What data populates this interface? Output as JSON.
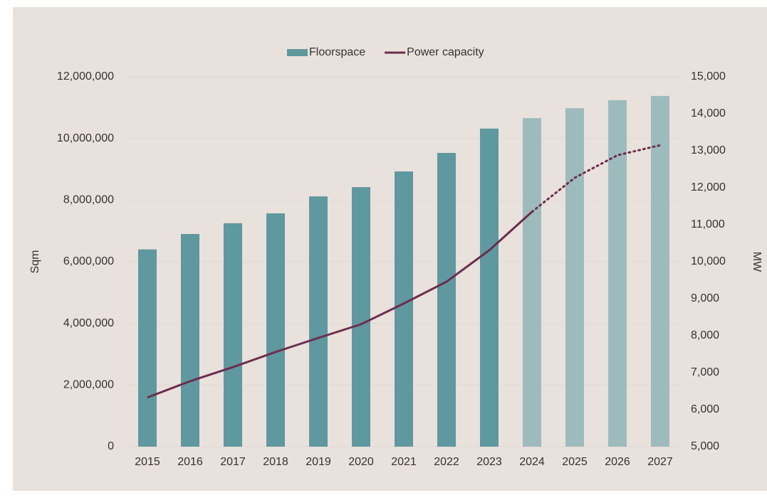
{
  "chart_data": {
    "type": "bar_line",
    "categories": [
      "2015",
      "2016",
      "2017",
      "2018",
      "2019",
      "2020",
      "2021",
      "2022",
      "2023",
      "2024",
      "2025",
      "2026",
      "2027"
    ],
    "series": [
      {
        "name": "Floorspace",
        "type": "bar",
        "color": "#5f989f",
        "forecast_color": "#9dbbbc",
        "values": [
          6400000,
          6900000,
          7250000,
          7570000,
          8120000,
          8420000,
          8930000,
          9530000,
          10320000,
          10660000,
          10980000,
          11240000,
          11380000
        ]
      },
      {
        "name": "Power capacity",
        "type": "line",
        "axis": "y2",
        "color": "#6b2d4f",
        "values": [
          6330,
          6770,
          7150,
          7560,
          7940,
          8310,
          8870,
          9460,
          10310,
          11350,
          12270,
          12880,
          13150
        ]
      }
    ],
    "forecast_from": "2024",
    "ylabel": "Sqm",
    "y2label": "MW",
    "ylim": [
      0,
      12000000
    ],
    "yticks": [
      0,
      {
        "value": 2000000,
        "label": "2,000,000"
      },
      {
        "value": 4000000,
        "label": "4,000,000"
      },
      {
        "value": 6000000,
        "label": "6,000,000"
      },
      {
        "value": 8000000,
        "label": "8,000,000"
      },
      {
        "value": 10000000,
        "label": "10,000,000"
      },
      {
        "value": 12000000,
        "label": "12,000,000"
      }
    ],
    "y2lim": [
      5000,
      15000
    ],
    "y2ticks": [
      {
        "value": 5000,
        "label": "5,000"
      },
      {
        "value": 6000,
        "label": "6,000"
      },
      {
        "value": 7000,
        "label": "7,000"
      },
      {
        "value": 8000,
        "label": "8,000"
      },
      {
        "value": 9000,
        "label": "9,000"
      },
      {
        "value": 10000,
        "label": "10,000"
      },
      {
        "value": 11000,
        "label": "11,000"
      },
      {
        "value": 12000,
        "label": "12,000"
      },
      {
        "value": 13000,
        "label": "13,000"
      },
      {
        "value": 14000,
        "label": "14,000"
      },
      {
        "value": 15000,
        "label": "15,000"
      }
    ],
    "grid": true,
    "legend": "top"
  }
}
